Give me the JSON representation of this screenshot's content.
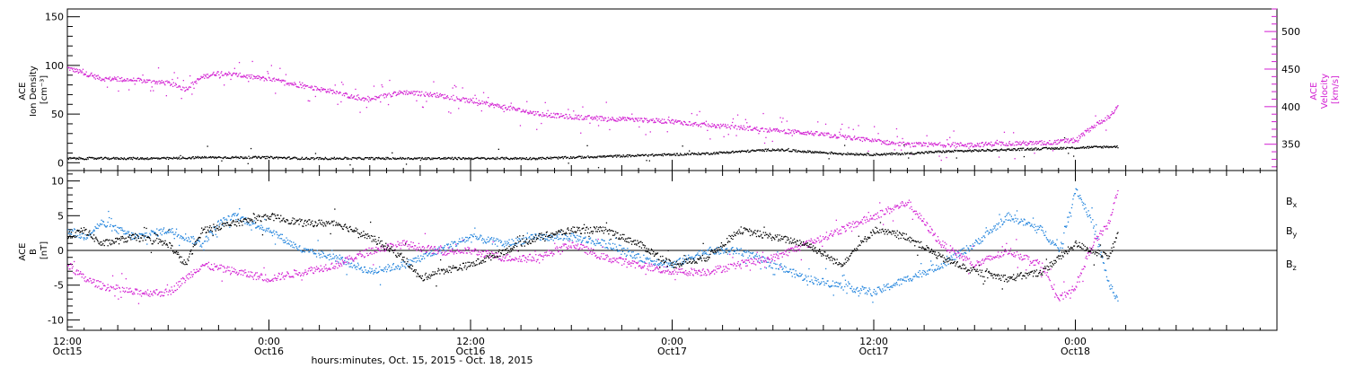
{
  "figure": {
    "x_title": "hours:minutes, Oct. 15, 2015 - Oct. 18, 2015"
  },
  "colors": {
    "black": "#000000",
    "magenta": "#d21ed2",
    "blue": "#1e82dc"
  },
  "chart_data": [
    {
      "type": "scatter",
      "panel": "top",
      "ylabel_left": [
        "ACE",
        "Ion Density",
        "[cm⁻³]"
      ],
      "ylabel_right": [
        "ACE",
        "Velocity",
        "[km/s]"
      ],
      "x_unit": "hours since Oct 15 00:00",
      "xlim": [
        12,
        84
      ],
      "ylim_left": [
        -8,
        158
      ],
      "yticks_left": [
        0,
        50,
        100,
        150
      ],
      "ylim_right": [
        315,
        530
      ],
      "yticks_right": [
        350,
        400,
        450,
        500
      ],
      "grid": false,
      "series": [
        {
          "name": "Ion Density",
          "axis": "left",
          "color": "#000000",
          "x": [
            12,
            14,
            16,
            18,
            20,
            22,
            24,
            26,
            28,
            30,
            32,
            34,
            36,
            38,
            40,
            42,
            44,
            46,
            48,
            50,
            52,
            54,
            56,
            58,
            60,
            62,
            64,
            66,
            68,
            70,
            72,
            74,
            74.5
          ],
          "y": [
            5,
            5,
            5,
            5,
            6,
            6,
            6,
            5,
            5,
            5,
            5,
            5,
            5,
            5,
            5,
            6,
            7,
            8,
            9,
            10,
            12,
            14,
            12,
            10,
            9,
            10,
            12,
            13,
            14,
            15,
            16,
            17,
            17
          ]
        },
        {
          "name": "Velocity",
          "axis": "right",
          "color": "#d21ed2",
          "x": [
            12,
            13,
            14,
            16,
            18,
            19,
            20,
            21,
            22,
            23,
            24,
            25,
            26,
            27,
            28,
            29,
            30,
            31,
            32,
            34,
            36,
            38,
            40,
            42,
            44,
            46,
            48,
            50,
            52,
            54,
            56,
            58,
            60,
            62,
            64,
            66,
            68,
            70,
            72,
            73,
            74,
            74.5
          ],
          "y": [
            452,
            445,
            438,
            436,
            432,
            424,
            440,
            446,
            443,
            440,
            437,
            433,
            428,
            424,
            420,
            413,
            410,
            416,
            420,
            416,
            408,
            400,
            391,
            387,
            385,
            383,
            381,
            376,
            373,
            369,
            366,
            361,
            355,
            350,
            350,
            350,
            352,
            352,
            356,
            374,
            388,
            400
          ]
        }
      ]
    },
    {
      "type": "scatter",
      "panel": "bottom",
      "ylabel_left": [
        "ACE",
        "B",
        "[nT]"
      ],
      "x_unit": "hours since Oct 15 00:00",
      "xlim": [
        12,
        84
      ],
      "ylim": [
        -11.5,
        11.5
      ],
      "yticks": [
        -10,
        -5,
        0,
        5,
        10
      ],
      "zero_line": true,
      "grid": false,
      "series": [
        {
          "name": "Bx",
          "color": "#000000",
          "x": [
            12,
            13,
            14,
            16,
            18,
            19,
            20,
            22,
            24,
            26,
            28,
            30,
            32,
            33,
            34,
            36,
            38,
            40,
            42,
            44,
            46,
            48,
            50,
            52,
            54,
            56,
            58,
            60,
            62,
            64,
            66,
            68,
            70,
            72,
            74,
            74.5
          ],
          "y": [
            2,
            3,
            1,
            2,
            1,
            -2,
            3,
            4,
            5,
            4,
            4,
            2,
            -1,
            -4,
            -3,
            -2,
            0,
            2,
            3,
            3,
            1,
            -2,
            -1,
            3,
            2,
            1,
            -2,
            3,
            2,
            -1,
            -3,
            -4,
            -3,
            1,
            -1,
            3
          ]
        },
        {
          "name": "By",
          "color": "#1e82dc",
          "x": [
            12,
            13,
            14,
            16,
            18,
            19,
            20,
            21,
            22,
            24,
            26,
            28,
            30,
            32,
            34,
            36,
            38,
            40,
            42,
            44,
            46,
            48,
            50,
            52,
            54,
            56,
            58,
            60,
            62,
            64,
            66,
            68,
            70,
            71,
            72,
            73,
            74,
            74.5
          ],
          "y": [
            3,
            2,
            4,
            2,
            3,
            2,
            1,
            4,
            5,
            3,
            0,
            -1,
            -3,
            -2,
            0,
            2,
            1,
            2,
            2,
            1,
            -1,
            -2,
            0,
            0,
            -2,
            -4,
            -5,
            -6,
            -4,
            -2,
            1,
            5,
            3,
            0,
            9,
            4,
            -5,
            -7
          ]
        },
        {
          "name": "Bz",
          "color": "#d21ed2",
          "x": [
            12,
            13,
            14,
            16,
            18,
            19,
            20,
            22,
            24,
            26,
            28,
            30,
            32,
            34,
            36,
            38,
            40,
            42,
            44,
            46,
            48,
            50,
            52,
            54,
            56,
            58,
            60,
            62,
            64,
            66,
            68,
            70,
            71,
            72,
            73,
            74,
            74.5
          ],
          "y": [
            -2,
            -4,
            -5,
            -6,
            -6,
            -4,
            -2,
            -3,
            -4,
            -3,
            -2,
            0,
            1,
            0,
            0,
            -1,
            -1,
            1,
            -1,
            -2,
            -3,
            -3,
            -2,
            -1,
            1,
            3,
            5,
            7,
            1,
            -2,
            0,
            -2,
            -7,
            -5,
            1,
            4,
            9
          ]
        }
      ]
    }
  ],
  "x_ticks": [
    {
      "x": 12,
      "time": "12:00",
      "day": "Oct15"
    },
    {
      "x": 24,
      "time": "0:00",
      "day": "Oct16"
    },
    {
      "x": 36,
      "time": "12:00",
      "day": "Oct16"
    },
    {
      "x": 48,
      "time": "0:00",
      "day": "Oct17"
    },
    {
      "x": 60,
      "time": "12:00",
      "day": "Oct17"
    },
    {
      "x": 72,
      "time": "0:00",
      "day": "Oct18"
    }
  ],
  "legend_bottom": [
    {
      "base": "B",
      "sub": "x",
      "color": "#000000"
    },
    {
      "base": "B",
      "sub": "y",
      "color": "#1e82dc"
    },
    {
      "base": "B",
      "sub": "z",
      "color": "#d21ed2"
    }
  ]
}
